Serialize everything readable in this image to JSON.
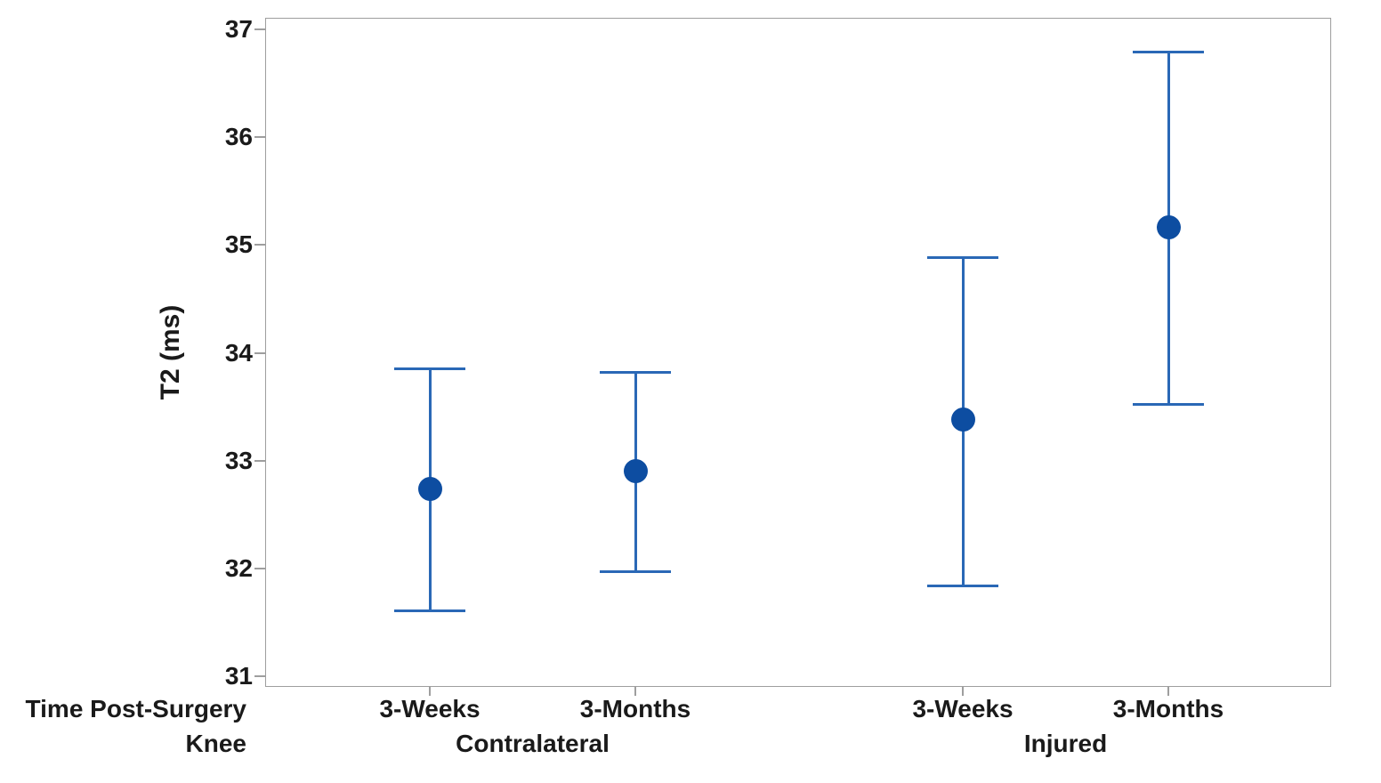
{
  "chart_data": {
    "type": "scatter",
    "subtype": "interval-plot-mean-ci",
    "title": "",
    "ylabel": "T2 (ms)",
    "ylim": [
      30.9,
      37.1
    ],
    "y_ticks": [
      37,
      36,
      35,
      34,
      33,
      32,
      31
    ],
    "grid": "off",
    "legend": "none",
    "x_row_headers": [
      "Time Post-Surgery",
      "Knee"
    ],
    "knee_groups": [
      {
        "label": "Contralateral"
      },
      {
        "label": "Injured"
      }
    ],
    "series": [
      {
        "knee": "Contralateral",
        "time": "3-Weeks",
        "mean": 32.74,
        "ci_low": 31.61,
        "ci_high": 33.85
      },
      {
        "knee": "Contralateral",
        "time": "3-Months",
        "mean": 32.9,
        "ci_low": 31.97,
        "ci_high": 33.82
      },
      {
        "knee": "Injured",
        "time": "3-Weeks",
        "mean": 33.38,
        "ci_low": 31.84,
        "ci_high": 34.88
      },
      {
        "knee": "Injured",
        "time": "3-Months",
        "mean": 35.16,
        "ci_low": 33.52,
        "ci_high": 36.79
      }
    ],
    "colors": {
      "marker": "#0d4da1",
      "interval_line": "#2a68b6",
      "frame": "#9e9e9e",
      "text": "#1a1a1a",
      "background": "#ffffff"
    }
  }
}
